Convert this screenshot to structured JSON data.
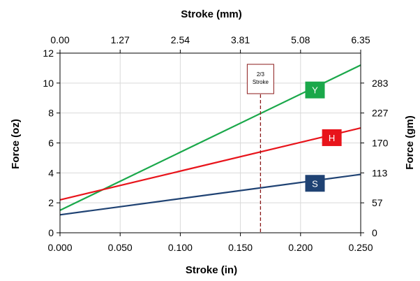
{
  "chart_data": {
    "type": "line",
    "xlabel_bottom": "Stroke (in)",
    "xlabel_top": "Stroke (mm)",
    "ylabel_left": "Force (oz)",
    "ylabel_right": "Force (gm)",
    "xlim": [
      0,
      0.25
    ],
    "ylim": [
      0,
      12
    ],
    "x_ticks": [
      "0.000",
      "0.050",
      "0.100",
      "0.150",
      "0.200",
      "0.250"
    ],
    "x_tick_values": [
      0,
      0.05,
      0.1,
      0.15,
      0.2,
      0.25
    ],
    "top_ticks": [
      "0.00",
      "1.27",
      "2.54",
      "3.81",
      "5.08",
      "6.35"
    ],
    "y_ticks": [
      "0",
      "2",
      "4",
      "6",
      "8",
      "10",
      "12"
    ],
    "y_tick_values": [
      0,
      2,
      4,
      6,
      8,
      10,
      12
    ],
    "right_ticks": [
      "0",
      "57",
      "113",
      "170",
      "227",
      "283"
    ],
    "right_tick_oz": [
      0,
      2,
      4,
      6,
      8,
      10
    ],
    "grid": true,
    "series": [
      {
        "name": "Y",
        "color": "#1aa84a",
        "x": [
          0,
          0.25
        ],
        "y": [
          1.5,
          11.2
        ]
      },
      {
        "name": "H",
        "color": "#e8141b",
        "x": [
          0,
          0.25
        ],
        "y": [
          2.2,
          7.0
        ]
      },
      {
        "name": "S",
        "color": "#1f4273",
        "x": [
          0,
          0.25
        ],
        "y": [
          1.2,
          3.9
        ]
      }
    ],
    "annotation": {
      "text_line1": "2/3",
      "text_line2": "Stroke",
      "x": 0.1667,
      "color": "#8b1a1a"
    }
  }
}
